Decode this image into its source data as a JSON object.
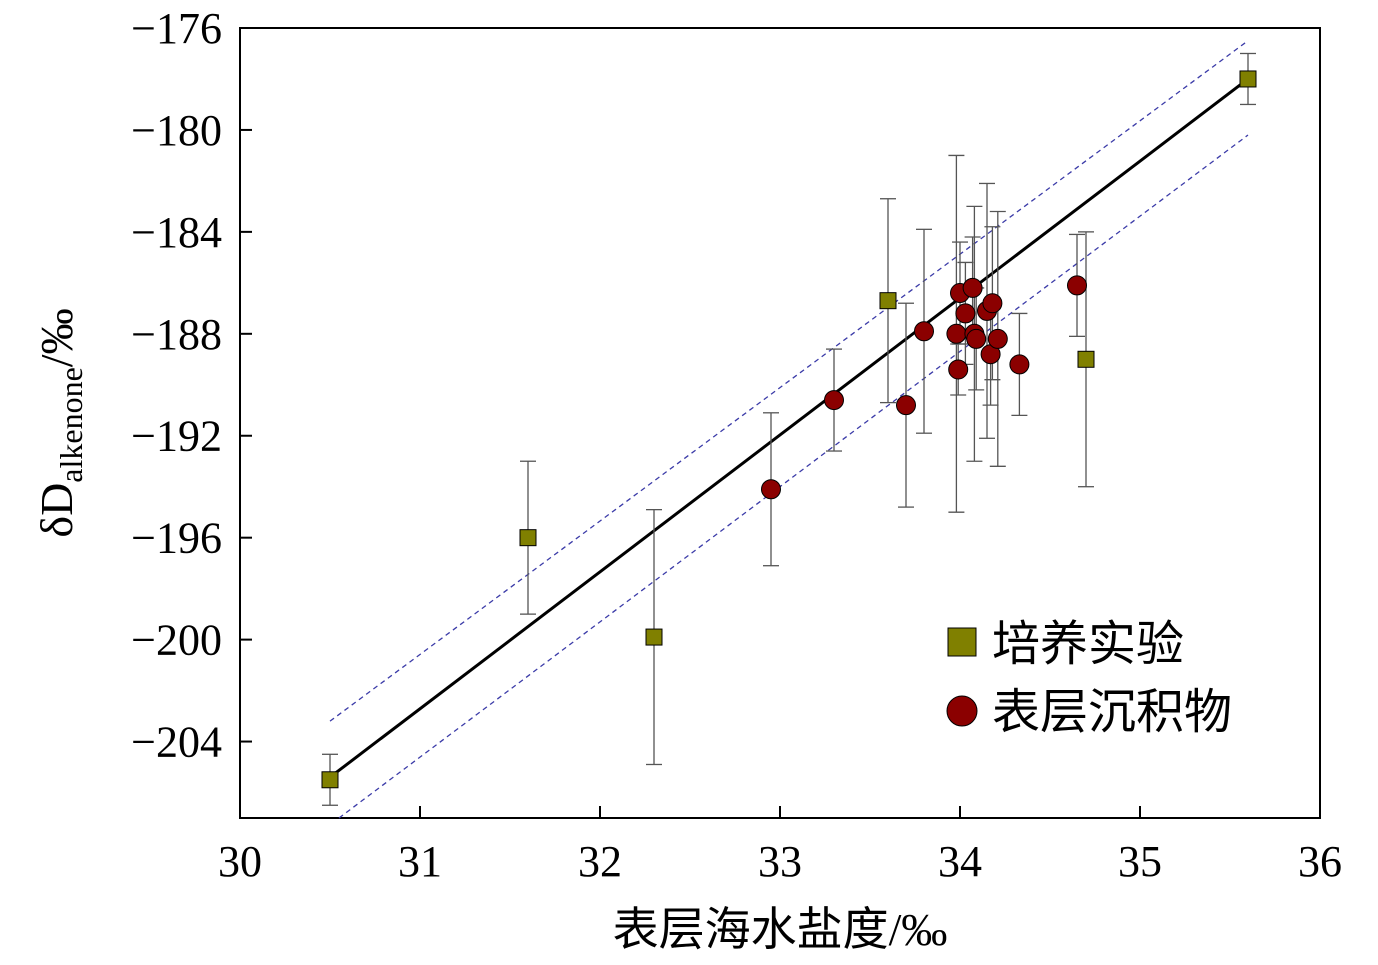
{
  "chart_data": {
    "type": "scatter",
    "xlabel": "表层海水盐度/‰",
    "ylabel_main": "δD",
    "ylabel_sub": "alkenone",
    "ylabel_unit": "/‰",
    "xlim": [
      30,
      36
    ],
    "ylim": [
      -207,
      -176
    ],
    "xticks": [
      30,
      31,
      32,
      33,
      34,
      35,
      36
    ],
    "yticks": [
      -176,
      -180,
      -184,
      -188,
      -192,
      -196,
      -200,
      -204
    ],
    "xtick_labels": [
      "30",
      "31",
      "32",
      "33",
      "34",
      "35",
      "36"
    ],
    "ytick_labels": [
      "−176",
      "−180",
      "−184",
      "−188",
      "−192",
      "−196",
      "−200",
      "−204"
    ],
    "grid": false,
    "legend_position": "bottom-right",
    "series": [
      {
        "name": "培养实验",
        "marker": "square",
        "color": "#808000",
        "points": [
          {
            "x": 30.5,
            "y": -205.5,
            "err": 1.0
          },
          {
            "x": 31.6,
            "y": -196.0,
            "err": 3.0
          },
          {
            "x": 32.3,
            "y": -199.9,
            "err": 5.0
          },
          {
            "x": 33.6,
            "y": -186.7,
            "err": 4.0
          },
          {
            "x": 34.7,
            "y": -189.0,
            "err": 5.0
          },
          {
            "x": 35.6,
            "y": -178.0,
            "err": 1.0
          }
        ]
      },
      {
        "name": "表层沉积物",
        "marker": "circle",
        "color": "#8b0000",
        "points": [
          {
            "x": 32.95,
            "y": -194.1,
            "err": 3.0
          },
          {
            "x": 33.3,
            "y": -190.6,
            "err": 2.0
          },
          {
            "x": 33.7,
            "y": -190.8,
            "err": 4.0
          },
          {
            "x": 33.8,
            "y": -187.9,
            "err": 4.0
          },
          {
            "x": 33.98,
            "y": -188.0,
            "err": 7.0
          },
          {
            "x": 33.99,
            "y": -189.4,
            "err": 1.0
          },
          {
            "x": 34.0,
            "y": -186.4,
            "err": 2.0
          },
          {
            "x": 34.03,
            "y": -187.2,
            "err": 2.0
          },
          {
            "x": 34.07,
            "y": -186.2,
            "err": 2.0
          },
          {
            "x": 34.08,
            "y": -188.0,
            "err": 5.0
          },
          {
            "x": 34.09,
            "y": -188.2,
            "err": 2.0
          },
          {
            "x": 34.15,
            "y": -187.1,
            "err": 5.0
          },
          {
            "x": 34.17,
            "y": -188.8,
            "err": 2.0
          },
          {
            "x": 34.18,
            "y": -186.8,
            "err": 3.0
          },
          {
            "x": 34.21,
            "y": -188.2,
            "err": 5.0
          },
          {
            "x": 34.33,
            "y": -189.2,
            "err": 2.0
          },
          {
            "x": 34.65,
            "y": -186.1,
            "err": 2.0
          }
        ]
      }
    ],
    "fit_line": {
      "x": [
        30.5,
        35.6
      ],
      "y": [
        -205.4,
        -178.0
      ],
      "color": "#000000"
    },
    "confidence_band": {
      "upper": {
        "x": [
          30.5,
          35.6
        ],
        "y": [
          -203.2,
          -176.5
        ]
      },
      "lower": {
        "x": [
          30.55,
          35.6
        ],
        "y": [
          -207.0,
          -180.2
        ]
      },
      "color": "#3b3ba8"
    }
  }
}
